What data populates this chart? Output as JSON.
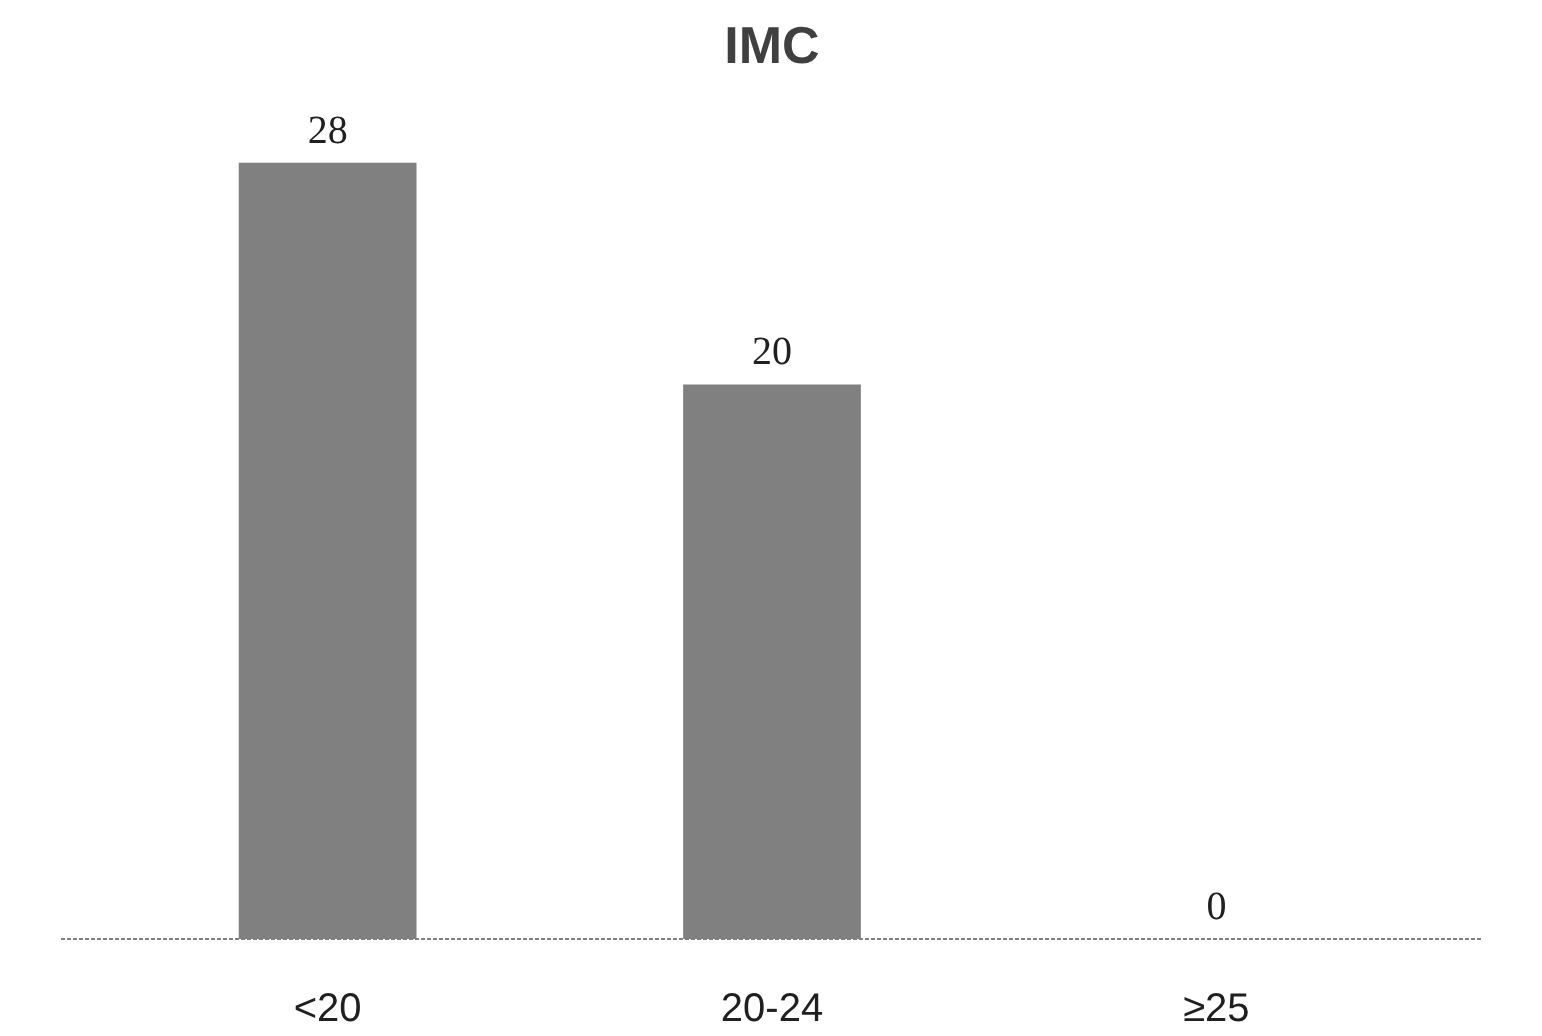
{
  "chart_data": {
    "type": "bar",
    "title": "IMC",
    "categories": [
      "<20",
      "20-24",
      "≥25"
    ],
    "values": [
      28,
      20,
      0
    ],
    "color": "#808080",
    "data_labels": true
  }
}
